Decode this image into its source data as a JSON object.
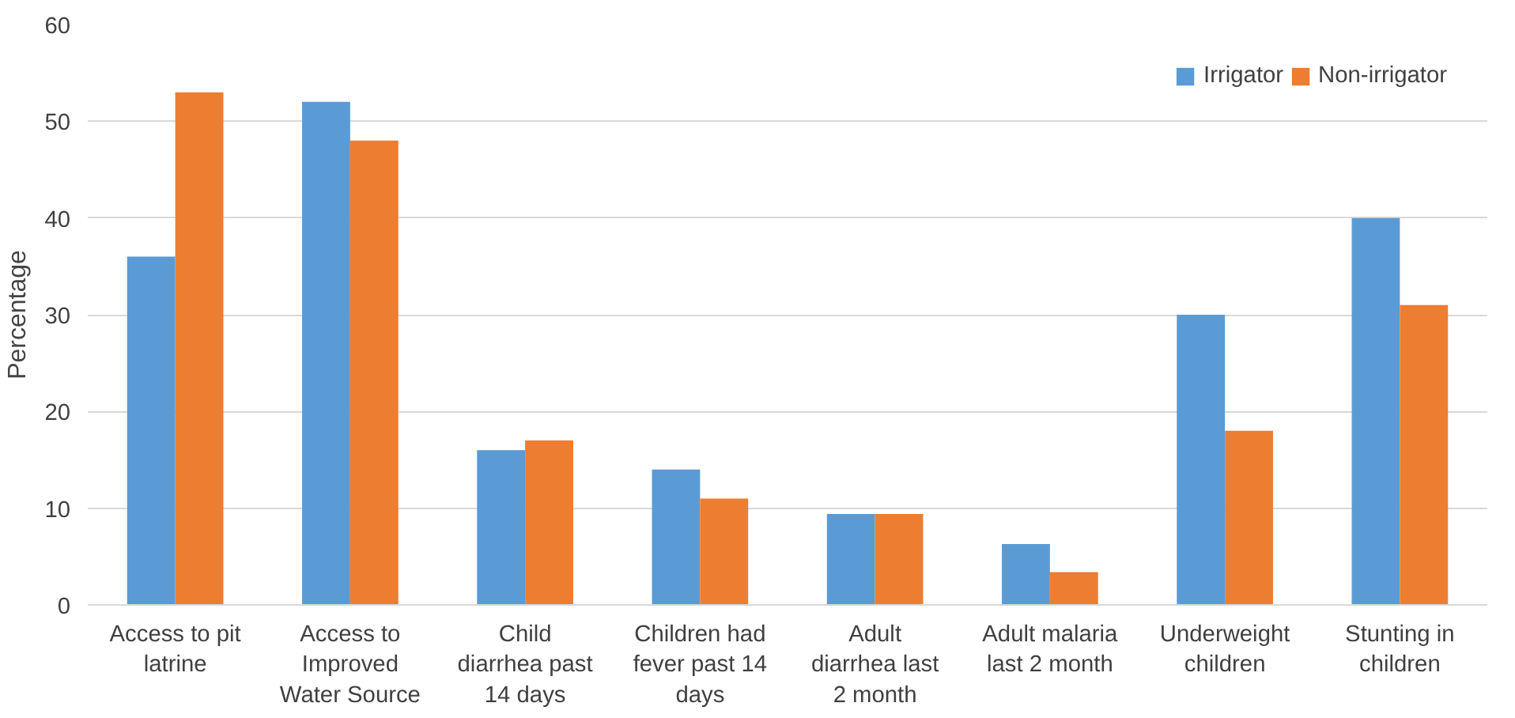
{
  "chart_data": {
    "type": "bar",
    "ylabel": "Percentage",
    "categories": [
      "Access to pit latrine",
      "Access to Improved Water Source",
      "Child diarrhea past 14 days",
      "Children had fever past 14 days",
      "Adult diarrhea last 2 month",
      "Adult malaria last 2 month",
      "Underweight children",
      "Stunting in children"
    ],
    "series": [
      {
        "name": "Irrigator",
        "color": "#5b9bd5",
        "values": [
          36,
          52,
          16,
          14,
          9.4,
          6.3,
          30,
          40
        ]
      },
      {
        "name": "Non-irrigator",
        "color": "#ed7d31",
        "values": [
          53,
          48,
          17,
          11,
          9.4,
          3.4,
          18,
          31
        ]
      }
    ],
    "ylim": [
      0,
      60
    ],
    "yticks": [
      0,
      10,
      20,
      30,
      40,
      50,
      60
    ],
    "grid": "y",
    "legend": "top right"
  }
}
